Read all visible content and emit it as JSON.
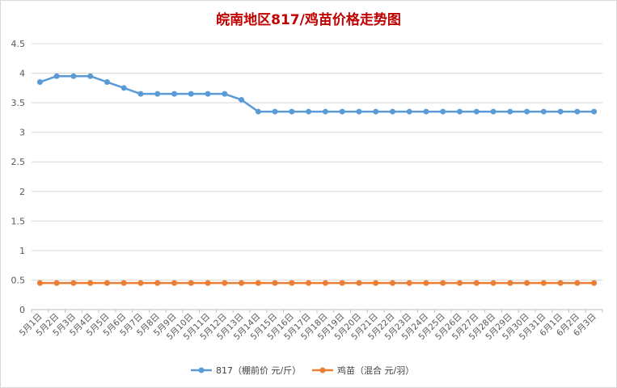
{
  "chart_data": {
    "type": "line",
    "title": "皖南地区817/鸡苗价格走势图",
    "xlabel": "",
    "ylabel": "",
    "ylim": [
      0,
      4.5
    ],
    "yticks": [
      "0",
      "0.5",
      "1",
      "1.5",
      "2",
      "2.5",
      "3",
      "3.5",
      "4",
      "4.5"
    ],
    "grid": true,
    "legend_position": "bottom",
    "categories": [
      "5月1日",
      "5月2日",
      "5月3日",
      "5月4日",
      "5月5日",
      "5月6日",
      "5月7日",
      "5月8日",
      "5月9日",
      "5月10日",
      "5月11日",
      "5月12日",
      "5月13日",
      "5月14日",
      "5月15日",
      "5月16日",
      "5月17日",
      "5月18日",
      "5月19日",
      "5月20日",
      "5月21日",
      "5月22日",
      "5月23日",
      "5月24日",
      "5月25日",
      "5月26日",
      "5月27日",
      "5月28日",
      "5月29日",
      "5月30日",
      "5月31日",
      "6月1日",
      "6月2日",
      "6月3日"
    ],
    "series": [
      {
        "name": "817（棚前价 元/斤）",
        "color": "#5b9bd5",
        "values": [
          3.85,
          3.95,
          3.95,
          3.95,
          3.85,
          3.75,
          3.65,
          3.65,
          3.65,
          3.65,
          3.65,
          3.65,
          3.55,
          3.35,
          3.35,
          3.35,
          3.35,
          3.35,
          3.35,
          3.35,
          3.35,
          3.35,
          3.35,
          3.35,
          3.35,
          3.35,
          3.35,
          3.35,
          3.35,
          3.35,
          3.35,
          3.35,
          3.35,
          3.35
        ]
      },
      {
        "name": "鸡苗（混合 元/羽）",
        "color": "#ed7d31",
        "values": [
          0.45,
          0.45,
          0.45,
          0.45,
          0.45,
          0.45,
          0.45,
          0.45,
          0.45,
          0.45,
          0.45,
          0.45,
          0.45,
          0.45,
          0.45,
          0.45,
          0.45,
          0.45,
          0.45,
          0.45,
          0.45,
          0.45,
          0.45,
          0.45,
          0.45,
          0.45,
          0.45,
          0.45,
          0.45,
          0.45,
          0.45,
          0.45,
          0.45,
          0.45
        ]
      }
    ]
  }
}
